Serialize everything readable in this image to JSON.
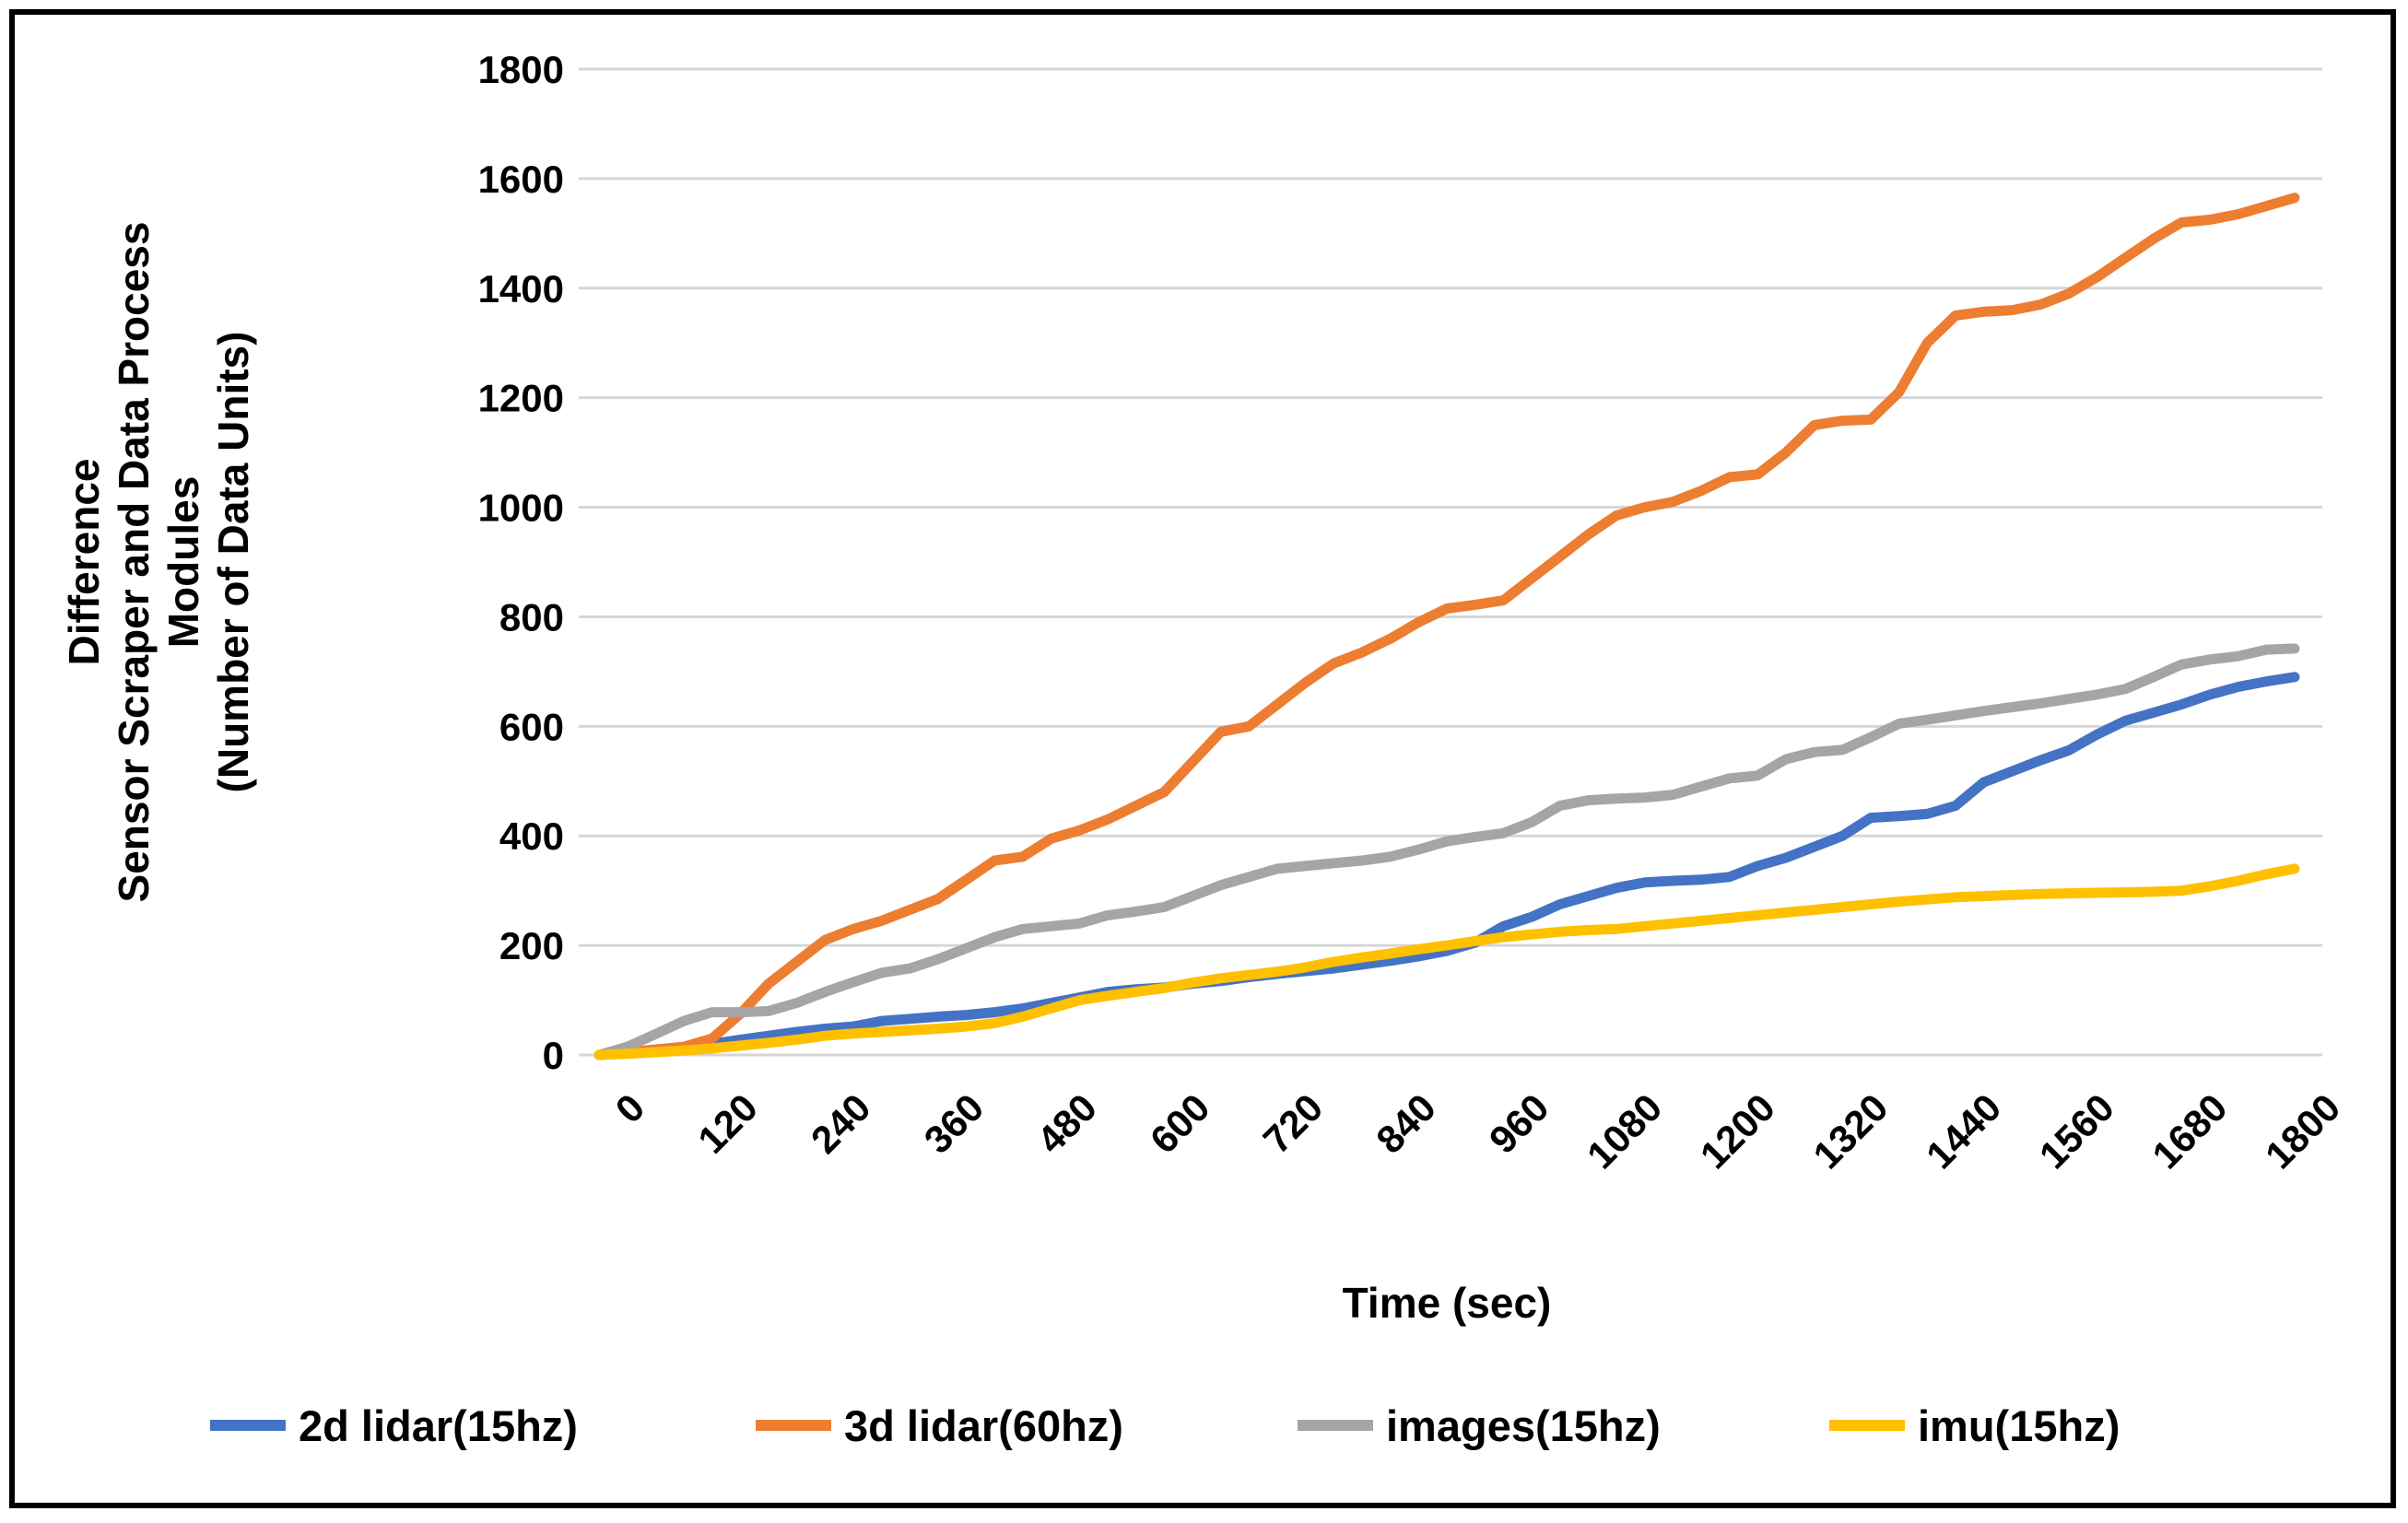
{
  "chart_data": {
    "type": "line",
    "title": "",
    "xlabel": "Time (sec)",
    "ylabel_lines": [
      "Difference",
      "Sensor Scraper and Data Process",
      "Modules",
      "(Number of Data Units)"
    ],
    "x_range": [
      0,
      1800
    ],
    "y_range": [
      0,
      1800
    ],
    "x_tick_labels": [
      0,
      120,
      240,
      360,
      480,
      600,
      720,
      840,
      960,
      1080,
      1200,
      1320,
      1440,
      1560,
      1680,
      1800
    ],
    "y_tick_labels": [
      0,
      200,
      400,
      600,
      800,
      1000,
      1200,
      1400,
      1600,
      1800
    ],
    "grid": "horizontal",
    "legend_position": "bottom",
    "background_color": "#FFFFFF",
    "border_color": "#000000",
    "gridline_color": "#D6D6D6",
    "text_color": "#000000",
    "x": [
      0,
      30,
      60,
      90,
      120,
      150,
      180,
      210,
      240,
      270,
      300,
      330,
      360,
      390,
      420,
      450,
      480,
      510,
      540,
      570,
      600,
      630,
      660,
      690,
      720,
      750,
      780,
      810,
      840,
      870,
      900,
      930,
      960,
      990,
      1020,
      1050,
      1080,
      1110,
      1140,
      1170,
      1200,
      1230,
      1260,
      1290,
      1320,
      1350,
      1380,
      1410,
      1440,
      1470,
      1500,
      1530,
      1560,
      1590,
      1620,
      1650,
      1680,
      1710,
      1740,
      1770,
      1800
    ],
    "series": [
      {
        "name": "2d lidar(15hz)",
        "color": "#4472C4",
        "values": [
          0,
          4,
          8,
          14,
          20,
          28,
          35,
          42,
          48,
          52,
          62,
          66,
          70,
          73,
          78,
          85,
          95,
          105,
          115,
          120,
          123,
          130,
          135,
          142,
          148,
          153,
          158,
          165,
          172,
          180,
          190,
          205,
          235,
          252,
          275,
          290,
          305,
          315,
          318,
          320,
          325,
          345,
          360,
          380,
          400,
          433,
          436,
          440,
          455,
          498,
          518,
          538,
          556,
          585,
          610,
          625,
          640,
          658,
          672,
          682,
          690
        ]
      },
      {
        "name": "3d lidar(60hz)",
        "color": "#ED7D31",
        "values": [
          0,
          5,
          10,
          15,
          30,
          75,
          130,
          170,
          210,
          230,
          245,
          265,
          285,
          320,
          355,
          362,
          395,
          410,
          430,
          455,
          480,
          535,
          590,
          600,
          640,
          680,
          715,
          735,
          760,
          790,
          815,
          822,
          830,
          870,
          910,
          950,
          985,
          1000,
          1010,
          1030,
          1055,
          1060,
          1100,
          1150,
          1158,
          1160,
          1210,
          1300,
          1350,
          1357,
          1360,
          1370,
          1390,
          1420,
          1455,
          1490,
          1520,
          1525,
          1535,
          1550,
          1565
        ]
      },
      {
        "name": "images(15hz)",
        "color": "#A5A5A5",
        "values": [
          0,
          15,
          38,
          62,
          78,
          78,
          80,
          95,
          115,
          133,
          150,
          158,
          175,
          195,
          215,
          230,
          235,
          240,
          255,
          262,
          270,
          290,
          310,
          325,
          340,
          345,
          350,
          355,
          362,
          375,
          390,
          398,
          405,
          425,
          455,
          465,
          468,
          470,
          475,
          490,
          505,
          510,
          540,
          553,
          557,
          580,
          605,
          612,
          620,
          628,
          635,
          642,
          650,
          658,
          668,
          690,
          713,
          722,
          728,
          740,
          742
        ]
      },
      {
        "name": "imu(15hz)",
        "color": "#FFC000",
        "values": [
          0,
          2,
          5,
          8,
          12,
          17,
          22,
          28,
          35,
          39,
          42,
          45,
          48,
          52,
          58,
          70,
          85,
          100,
          108,
          115,
          122,
          132,
          140,
          146,
          152,
          160,
          170,
          178,
          185,
          193,
          200,
          208,
          215,
          220,
          225,
          228,
          230,
          235,
          240,
          245,
          250,
          255,
          260,
          265,
          270,
          275,
          280,
          284,
          288,
          290,
          292,
          294,
          295,
          296,
          297,
          298,
          300,
          308,
          318,
          330,
          340
        ]
      }
    ]
  }
}
